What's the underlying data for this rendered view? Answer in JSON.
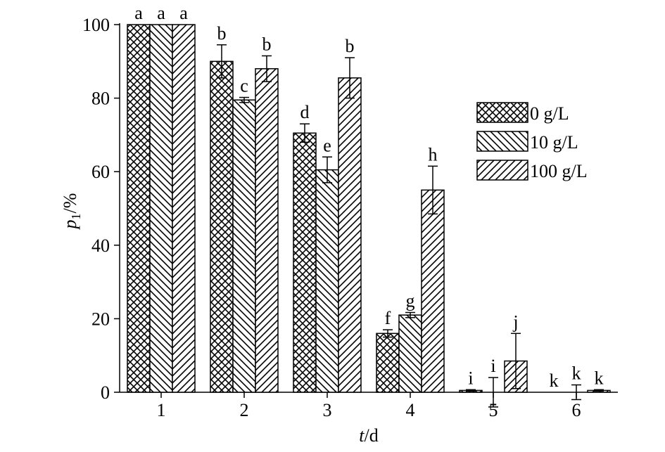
{
  "chart_data": {
    "type": "bar",
    "categories": [
      "1",
      "2",
      "3",
      "4",
      "5",
      "6"
    ],
    "series": [
      {
        "name": "0 g/L",
        "color": "#000000",
        "pattern": "crosshatch",
        "values": [
          100,
          90,
          70.5,
          16,
          0.5,
          0
        ],
        "errors": [
          0,
          4.5,
          2.5,
          1,
          0.2,
          0
        ],
        "letters": [
          "a",
          "b",
          "d",
          "f",
          "i",
          "k"
        ]
      },
      {
        "name": "10 g/L",
        "color": "#000000",
        "pattern": "backslash",
        "values": [
          100,
          79.5,
          60.5,
          21,
          0,
          0
        ],
        "errors": [
          0,
          0.7,
          3.5,
          0.7,
          4,
          2
        ],
        "letters": [
          "a",
          "c",
          "e",
          "g",
          "i",
          "k"
        ]
      },
      {
        "name": "100 g/L",
        "color": "#000000",
        "pattern": "slash",
        "values": [
          100,
          88,
          85.5,
          55,
          8.5,
          0.5
        ],
        "errors": [
          0,
          3.5,
          5.5,
          6.5,
          7.5,
          0.2
        ],
        "letters": [
          "a",
          "b",
          "b",
          "h",
          "j",
          "k"
        ]
      }
    ],
    "ylabel": {
      "symbol": "p",
      "subscript": "1",
      "unit": "/%"
    },
    "xlabel": {
      "symbol": "t",
      "unit": "/d"
    },
    "ylim": [
      0,
      100
    ],
    "yticks": [
      0,
      20,
      40,
      60,
      80,
      100
    ],
    "legend": "upper right"
  }
}
